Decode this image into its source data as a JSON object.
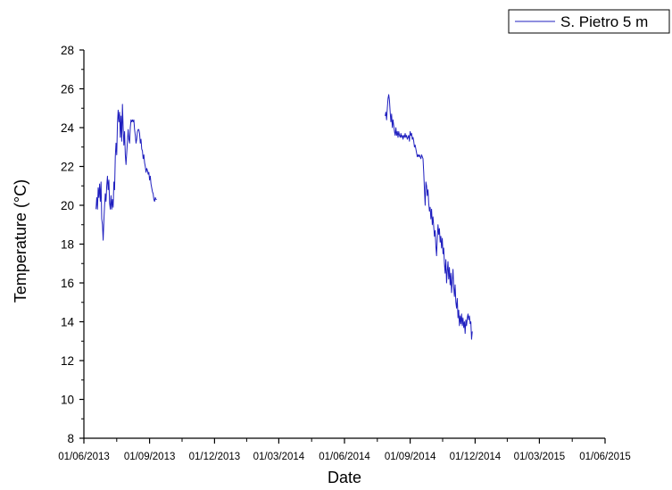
{
  "chart_data": {
    "type": "line",
    "xlabel": "Date",
    "ylabel": "Temperature (°C)",
    "xlim": [
      "2013-06-01",
      "2015-06-01"
    ],
    "ylim": [
      8,
      28
    ],
    "x_ticks": [
      "01/06/2013",
      "01/09/2013",
      "01/12/2013",
      "01/03/2014",
      "01/06/2014",
      "01/09/2014",
      "01/12/2014",
      "01/03/2015",
      "01/06/2015"
    ],
    "y_ticks": [
      "8",
      "10",
      "12",
      "14",
      "16",
      "18",
      "20",
      "22",
      "24",
      "26",
      "28"
    ],
    "grid": false,
    "legend_position": "top-right",
    "series": [
      {
        "name": "S. Pietro 5 m",
        "color": "#1f1fbf",
        "segments": [
          [
            [
              "2013-06-18",
              19.8
            ],
            [
              "2013-06-19",
              20.4
            ],
            [
              "2013-06-20",
              19.8
            ],
            [
              "2013-06-21",
              20.9
            ],
            [
              "2013-06-22",
              20.4
            ],
            [
              "2013-06-23",
              21.1
            ],
            [
              "2013-06-24",
              20.2
            ],
            [
              "2013-06-25",
              21.2
            ],
            [
              "2013-06-26",
              19.3
            ],
            [
              "2013-06-27",
              19.0
            ],
            [
              "2013-06-28",
              18.2
            ],
            [
              "2013-06-29",
              19.2
            ],
            [
              "2013-06-30",
              20.0
            ],
            [
              "2013-07-01",
              20.6
            ],
            [
              "2013-07-02",
              20.2
            ],
            [
              "2013-07-03",
              21.0
            ],
            [
              "2013-07-04",
              21.5
            ],
            [
              "2013-07-05",
              20.8
            ],
            [
              "2013-07-06",
              21.3
            ],
            [
              "2013-07-07",
              20.1
            ],
            [
              "2013-07-08",
              19.8
            ],
            [
              "2013-07-09",
              20.5
            ],
            [
              "2013-07-10",
              19.8
            ],
            [
              "2013-07-11",
              20.3
            ],
            [
              "2013-07-12",
              19.9
            ],
            [
              "2013-07-13",
              21.2
            ],
            [
              "2013-07-14",
              20.8
            ],
            [
              "2013-07-15",
              22.5
            ],
            [
              "2013-07-16",
              23.2
            ],
            [
              "2013-07-17",
              22.6
            ],
            [
              "2013-07-18",
              24.2
            ],
            [
              "2013-07-19",
              24.9
            ],
            [
              "2013-07-20",
              24.3
            ],
            [
              "2013-07-21",
              24.8
            ],
            [
              "2013-07-22",
              23.5
            ],
            [
              "2013-07-23",
              24.6
            ],
            [
              "2013-07-24",
              23.3
            ],
            [
              "2013-07-25",
              25.2
            ],
            [
              "2013-07-26",
              24.0
            ],
            [
              "2013-07-27",
              23.1
            ],
            [
              "2013-07-28",
              23.8
            ],
            [
              "2013-07-29",
              22.6
            ],
            [
              "2013-07-30",
              22.1
            ],
            [
              "2013-07-31",
              22.7
            ],
            [
              "2013-08-01",
              23.3
            ],
            [
              "2013-08-02",
              23.9
            ],
            [
              "2013-08-03",
              23.4
            ],
            [
              "2013-08-04",
              23.2
            ],
            [
              "2013-08-05",
              24.0
            ],
            [
              "2013-08-06",
              24.4
            ],
            [
              "2013-08-07",
              24.3
            ],
            [
              "2013-08-08",
              24.4
            ],
            [
              "2013-08-09",
              24.3
            ],
            [
              "2013-08-10",
              24.4
            ],
            [
              "2013-08-11",
              23.9
            ],
            [
              "2013-08-12",
              23.6
            ],
            [
              "2013-08-13",
              23.2
            ],
            [
              "2013-08-14",
              23.4
            ],
            [
              "2013-08-15",
              23.8
            ],
            [
              "2013-08-16",
              23.9
            ],
            [
              "2013-08-17",
              23.9
            ],
            [
              "2013-08-18",
              23.7
            ],
            [
              "2013-08-19",
              23.2
            ],
            [
              "2013-08-20",
              23.4
            ],
            [
              "2013-08-21",
              22.9
            ],
            [
              "2013-08-22",
              22.8
            ],
            [
              "2013-08-23",
              22.4
            ],
            [
              "2013-08-24",
              22.6
            ],
            [
              "2013-08-25",
              22.2
            ],
            [
              "2013-08-26",
              22.0
            ],
            [
              "2013-08-27",
              21.7
            ],
            [
              "2013-08-28",
              21.9
            ],
            [
              "2013-08-29",
              21.8
            ],
            [
              "2013-08-30",
              21.6
            ],
            [
              "2013-08-31",
              21.7
            ],
            [
              "2013-09-01",
              21.3
            ],
            [
              "2013-09-02",
              21.5
            ],
            [
              "2013-09-03",
              21.1
            ],
            [
              "2013-09-04",
              20.9
            ],
            [
              "2013-09-05",
              20.7
            ],
            [
              "2013-09-06",
              20.6
            ],
            [
              "2013-09-07",
              20.3
            ],
            [
              "2013-09-08",
              20.2
            ],
            [
              "2013-09-09",
              20.4
            ],
            [
              "2013-09-10",
              20.3
            ],
            [
              "2013-09-11",
              20.3
            ]
          ],
          [
            [
              "2014-07-28",
              24.6
            ],
            [
              "2014-07-29",
              24.8
            ],
            [
              "2014-07-30",
              24.4
            ],
            [
              "2014-07-31",
              25.0
            ],
            [
              "2014-08-01",
              25.5
            ],
            [
              "2014-08-02",
              25.7
            ],
            [
              "2014-08-03",
              25.4
            ],
            [
              "2014-08-04",
              24.8
            ],
            [
              "2014-08-05",
              24.3
            ],
            [
              "2014-08-06",
              24.7
            ],
            [
              "2014-08-07",
              24.0
            ],
            [
              "2014-08-08",
              24.4
            ],
            [
              "2014-08-09",
              24.1
            ],
            [
              "2014-08-10",
              23.8
            ],
            [
              "2014-08-11",
              23.6
            ],
            [
              "2014-08-12",
              24.0
            ],
            [
              "2014-08-13",
              23.6
            ],
            [
              "2014-08-14",
              23.8
            ],
            [
              "2014-08-15",
              23.5
            ],
            [
              "2014-08-16",
              23.8
            ],
            [
              "2014-08-17",
              23.6
            ],
            [
              "2014-08-18",
              23.5
            ],
            [
              "2014-08-19",
              23.7
            ],
            [
              "2014-08-20",
              23.5
            ],
            [
              "2014-08-21",
              23.6
            ],
            [
              "2014-08-22",
              23.4
            ],
            [
              "2014-08-23",
              23.6
            ],
            [
              "2014-08-24",
              23.5
            ],
            [
              "2014-08-25",
              23.7
            ],
            [
              "2014-08-26",
              23.5
            ],
            [
              "2014-08-27",
              23.6
            ],
            [
              "2014-08-28",
              23.4
            ],
            [
              "2014-08-29",
              23.5
            ],
            [
              "2014-08-30",
              23.6
            ],
            [
              "2014-08-31",
              23.3
            ],
            [
              "2014-09-01",
              23.8
            ],
            [
              "2014-09-02",
              23.6
            ],
            [
              "2014-09-03",
              23.7
            ],
            [
              "2014-09-04",
              23.4
            ],
            [
              "2014-09-05",
              23.5
            ],
            [
              "2014-09-06",
              23.3
            ],
            [
              "2014-09-07",
              23.0
            ],
            [
              "2014-09-08",
              23.1
            ],
            [
              "2014-09-09",
              22.9
            ],
            [
              "2014-09-10",
              22.7
            ],
            [
              "2014-09-11",
              22.5
            ],
            [
              "2014-09-12",
              22.6
            ],
            [
              "2014-09-13",
              22.5
            ],
            [
              "2014-09-14",
              22.6
            ],
            [
              "2014-09-15",
              22.5
            ],
            [
              "2014-09-16",
              22.4
            ],
            [
              "2014-09-17",
              22.6
            ],
            [
              "2014-09-18",
              22.5
            ],
            [
              "2014-09-19",
              22.4
            ],
            [
              "2014-09-20",
              21.7
            ],
            [
              "2014-09-21",
              20.8
            ],
            [
              "2014-09-22",
              20.0
            ],
            [
              "2014-09-23",
              21.2
            ],
            [
              "2014-09-24",
              21.0
            ],
            [
              "2014-09-25",
              20.5
            ],
            [
              "2014-09-26",
              20.8
            ],
            [
              "2014-09-27",
              20.1
            ],
            [
              "2014-09-28",
              19.7
            ],
            [
              "2014-09-29",
              19.9
            ],
            [
              "2014-09-30",
              19.3
            ],
            [
              "2014-10-01",
              19.8
            ],
            [
              "2014-10-02",
              19.0
            ],
            [
              "2014-10-03",
              19.4
            ],
            [
              "2014-10-04",
              18.9
            ],
            [
              "2014-10-05",
              18.4
            ],
            [
              "2014-10-06",
              18.7
            ],
            [
              "2014-10-07",
              17.9
            ],
            [
              "2014-10-08",
              17.4
            ],
            [
              "2014-10-09",
              18.3
            ],
            [
              "2014-10-10",
              19.0
            ],
            [
              "2014-10-11",
              18.5
            ],
            [
              "2014-10-12",
              18.8
            ],
            [
              "2014-10-13",
              18.1
            ],
            [
              "2014-10-14",
              18.4
            ],
            [
              "2014-10-15",
              17.8
            ],
            [
              "2014-10-16",
              18.3
            ],
            [
              "2014-10-17",
              17.5
            ],
            [
              "2014-10-18",
              17.8
            ],
            [
              "2014-10-19",
              17.0
            ],
            [
              "2014-10-20",
              16.5
            ],
            [
              "2014-10-21",
              17.2
            ],
            [
              "2014-10-22",
              16.0
            ],
            [
              "2014-10-23",
              16.6
            ],
            [
              "2014-10-24",
              17.1
            ],
            [
              "2014-10-25",
              16.2
            ],
            [
              "2014-10-26",
              16.8
            ],
            [
              "2014-10-27",
              15.9
            ],
            [
              "2014-10-28",
              16.5
            ],
            [
              "2014-10-29",
              15.5
            ],
            [
              "2014-10-30",
              16.1
            ],
            [
              "2014-10-31",
              16.7
            ],
            [
              "2014-11-01",
              15.8
            ],
            [
              "2014-11-02",
              15.3
            ],
            [
              "2014-11-03",
              15.9
            ],
            [
              "2014-11-04",
              15.0
            ],
            [
              "2014-11-05",
              14.7
            ],
            [
              "2014-11-06",
              15.2
            ],
            [
              "2014-11-07",
              14.2
            ],
            [
              "2014-11-08",
              14.6
            ],
            [
              "2014-11-09",
              13.8
            ],
            [
              "2014-11-10",
              14.3
            ],
            [
              "2014-11-11",
              13.9
            ],
            [
              "2014-11-12",
              14.4
            ],
            [
              "2014-11-13",
              13.8
            ],
            [
              "2014-11-14",
              14.2
            ],
            [
              "2014-11-15",
              13.7
            ],
            [
              "2014-11-16",
              14.0
            ],
            [
              "2014-11-17",
              13.4
            ],
            [
              "2014-11-18",
              14.1
            ],
            [
              "2014-11-19",
              13.8
            ],
            [
              "2014-11-20",
              14.2
            ],
            [
              "2014-11-21",
              14.4
            ],
            [
              "2014-11-22",
              14.1
            ],
            [
              "2014-11-23",
              14.3
            ],
            [
              "2014-11-24",
              13.9
            ],
            [
              "2014-11-25",
              14.0
            ],
            [
              "2014-11-26",
              13.1
            ],
            [
              "2014-11-27",
              13.5
            ]
          ]
        ]
      }
    ]
  }
}
